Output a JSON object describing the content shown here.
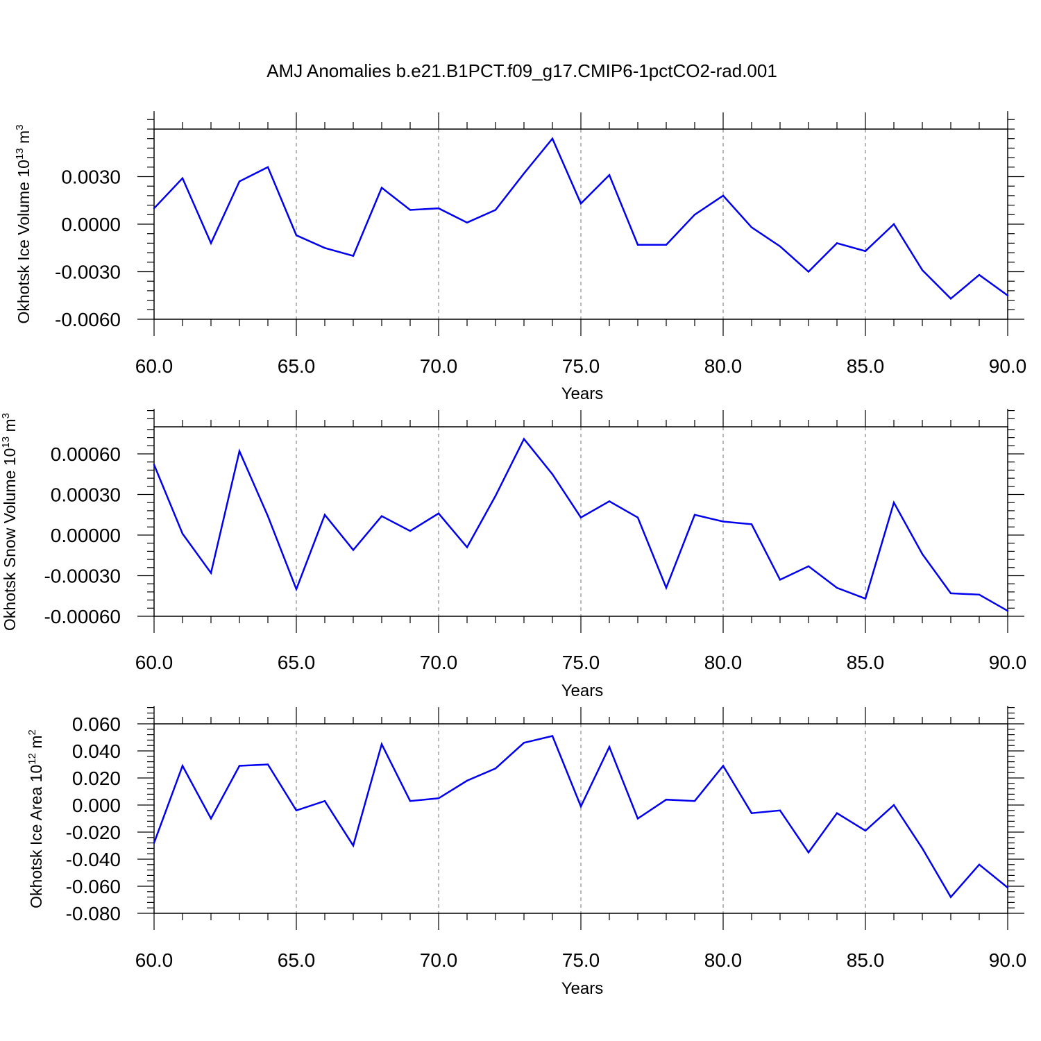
{
  "chart_data": {
    "title": "AMJ Anomalies b.e21.B1PCT.f09_g17.CMIP6-1pctCO2-rad.001",
    "line_color": "#0000ee",
    "panels": [
      {
        "type": "line",
        "ylabel": "Okhotsk Ice Volume 10",
        "ylabel_sup": "13",
        "ylabel_unit": " m",
        "ylabel_unit_sup": "3",
        "xlabel": "Years",
        "xlim": [
          60,
          90
        ],
        "ylim": [
          -0.006,
          0.006
        ],
        "yticks": [
          -0.006,
          -0.003,
          0.0,
          0.003
        ],
        "ytick_labels": [
          "-0.0060",
          "-0.0030",
          "0.0000",
          "0.0030"
        ],
        "xticks": [
          60,
          65,
          70,
          75,
          80,
          85,
          90
        ],
        "xtick_labels": [
          "60.0",
          "65.0",
          "70.0",
          "75.0",
          "80.0",
          "85.0",
          "90.0"
        ],
        "gridlines_x": [
          65,
          70,
          75,
          80,
          85
        ],
        "x": [
          60,
          61,
          62,
          63,
          64,
          65,
          66,
          67,
          68,
          69,
          70,
          71,
          72,
          73,
          74,
          75,
          76,
          77,
          78,
          79,
          80,
          81,
          82,
          83,
          84,
          85,
          86,
          87,
          88,
          89,
          90
        ],
        "values": [
          0.001,
          0.0029,
          -0.0012,
          0.0027,
          0.0036,
          -0.0007,
          -0.0015,
          -0.002,
          0.0023,
          0.0009,
          0.001,
          0.0001,
          0.0009,
          0.0032,
          0.0054,
          0.0013,
          0.0031,
          -0.0013,
          -0.0013,
          0.0006,
          0.0018,
          -0.0002,
          -0.0014,
          -0.003,
          -0.0012,
          -0.0017,
          0.0,
          -0.0029,
          -0.0047,
          -0.0032,
          -0.0045
        ]
      },
      {
        "type": "line",
        "ylabel": "Okhotsk Snow Volume 10",
        "ylabel_sup": "13",
        "ylabel_unit": " m",
        "ylabel_unit_sup": "3",
        "xlabel": "Years",
        "xlim": [
          60,
          90
        ],
        "ylim": [
          -0.0006,
          0.0008
        ],
        "yticks": [
          -0.0006,
          -0.0003,
          0.0,
          0.0003,
          0.0006
        ],
        "ytick_labels": [
          "-0.00060",
          "-0.00030",
          "0.00000",
          "0.00030",
          "0.00060"
        ],
        "xticks": [
          60,
          65,
          70,
          75,
          80,
          85,
          90
        ],
        "xtick_labels": [
          "60.0",
          "65.0",
          "70.0",
          "75.0",
          "80.0",
          "85.0",
          "90.0"
        ],
        "gridlines_x": [
          65,
          70,
          75,
          80,
          85
        ],
        "x": [
          60,
          61,
          62,
          63,
          64,
          65,
          66,
          67,
          68,
          69,
          70,
          71,
          72,
          73,
          74,
          75,
          76,
          77,
          78,
          79,
          80,
          81,
          82,
          83,
          84,
          85,
          86,
          87,
          88,
          89,
          90
        ],
        "values": [
          0.00052,
          1e-05,
          -0.00028,
          0.00062,
          0.00014,
          -0.0004,
          0.00015,
          -0.00011,
          0.00014,
          3e-05,
          0.00016,
          -9e-05,
          0.00029,
          0.00071,
          0.00045,
          0.00013,
          0.00025,
          0.00013,
          -0.00039,
          0.00015,
          0.0001,
          8e-05,
          -0.00033,
          -0.00023,
          -0.00039,
          -0.00047,
          0.00024,
          -0.00014,
          -0.00043,
          -0.00044,
          -0.00056
        ]
      },
      {
        "type": "line",
        "ylabel": "Okhotsk Ice Area 10",
        "ylabel_sup": "12",
        "ylabel_unit": " m",
        "ylabel_unit_sup": "2",
        "xlabel": "Years",
        "xlim": [
          60,
          90
        ],
        "ylim": [
          -0.08,
          0.06
        ],
        "yticks": [
          -0.08,
          -0.06,
          -0.04,
          -0.02,
          0.0,
          0.02,
          0.04,
          0.06
        ],
        "ytick_labels": [
          "-0.080",
          "-0.060",
          "-0.040",
          "-0.020",
          "0.000",
          "0.020",
          "0.040",
          "0.060"
        ],
        "xticks": [
          60,
          65,
          70,
          75,
          80,
          85,
          90
        ],
        "xtick_labels": [
          "60.0",
          "65.0",
          "70.0",
          "75.0",
          "80.0",
          "85.0",
          "90.0"
        ],
        "gridlines_x": [
          65,
          70,
          75,
          80,
          85
        ],
        "x": [
          60,
          61,
          62,
          63,
          64,
          65,
          66,
          67,
          68,
          69,
          70,
          71,
          72,
          73,
          74,
          75,
          76,
          77,
          78,
          79,
          80,
          81,
          82,
          83,
          84,
          85,
          86,
          87,
          88,
          89,
          90
        ],
        "values": [
          -0.028,
          0.029,
          -0.01,
          0.029,
          0.03,
          -0.004,
          0.003,
          -0.03,
          0.045,
          0.003,
          0.005,
          0.018,
          0.027,
          0.046,
          0.051,
          -0.001,
          0.043,
          -0.01,
          0.004,
          0.003,
          0.029,
          -0.006,
          -0.004,
          -0.035,
          -0.006,
          -0.019,
          0.0,
          -0.032,
          -0.068,
          -0.044,
          -0.061
        ]
      }
    ]
  }
}
